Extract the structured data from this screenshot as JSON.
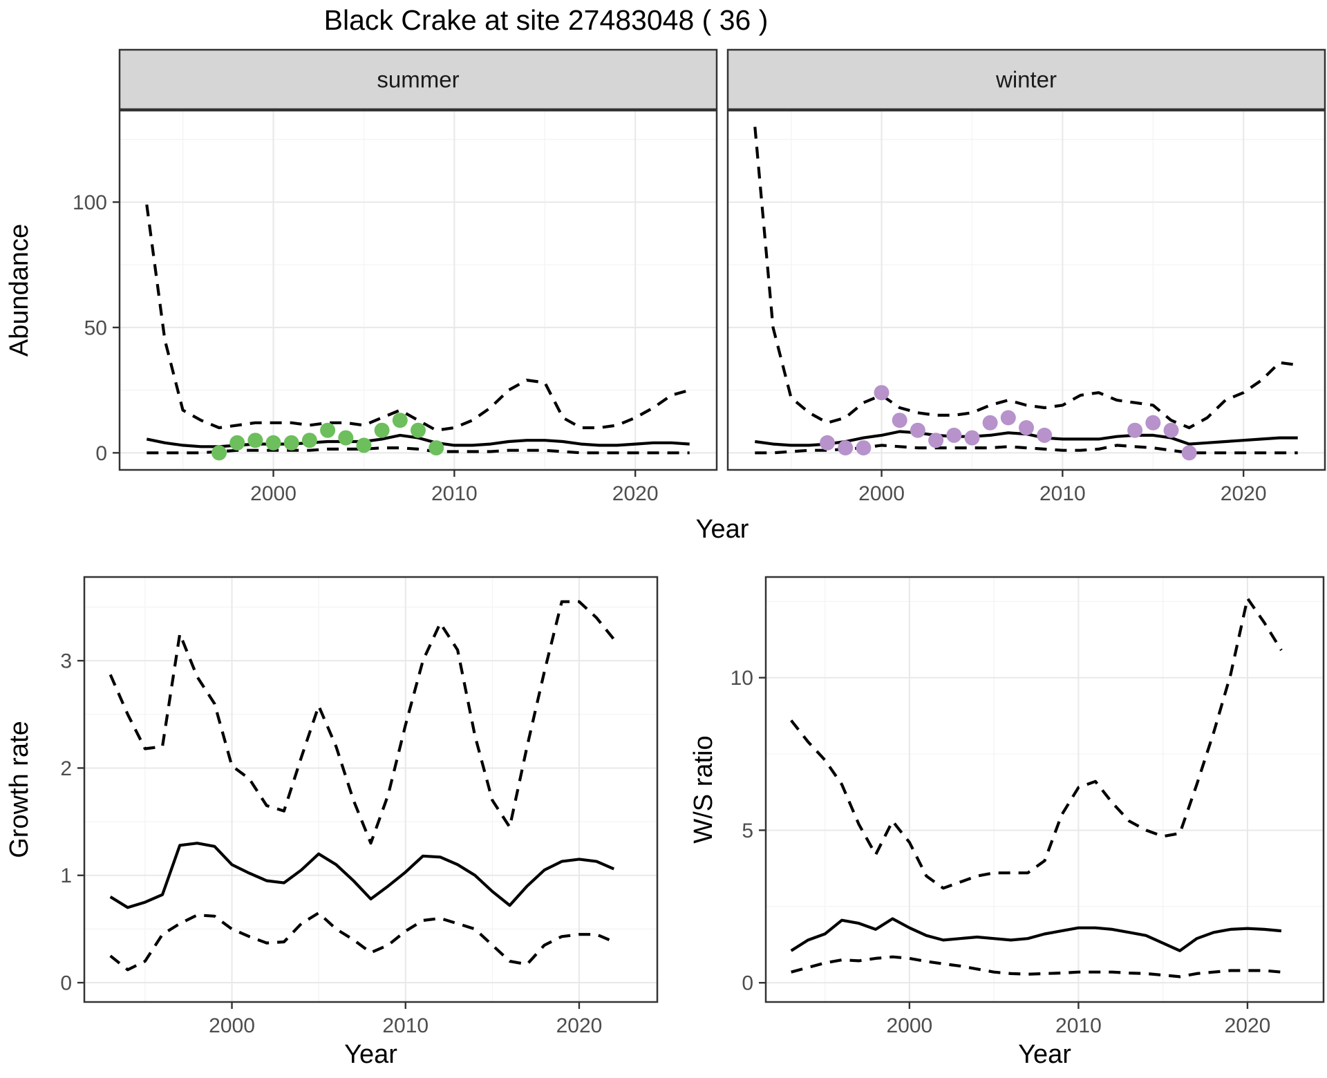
{
  "title": "Black Crake at site 27483048 ( 36 )",
  "colors": {
    "background": "#ffffff",
    "summer_point": "#6cbf5c",
    "winter_point": "#b792cb",
    "line": "#000000",
    "strip_bg": "#d6d6d6",
    "strip_text": "#1a1a1a",
    "panel_border": "#333333",
    "grid_major": "#e8e8e8",
    "grid_minor": "#f3f3f3",
    "tick_color": "#333333",
    "axis_text": "#4d4d4d",
    "axis_title": "#000000"
  },
  "shared_x_title": "Year",
  "chart_data": [
    {
      "id": "abundance-summer",
      "type": "line",
      "facet_label": "summer",
      "xlabel": "Year",
      "ylabel": "Abundance",
      "xlim": [
        1991.5,
        2024.5
      ],
      "ylim": [
        -6.8,
        136.5
      ],
      "xticks": [
        2000,
        2010,
        2020
      ],
      "yticks": [
        0,
        50,
        100
      ],
      "x_minor": [
        1995,
        2005,
        2015,
        2025
      ],
      "y_minor": [
        25,
        75,
        125
      ],
      "grid": true,
      "legend_position": "none",
      "years": [
        1993,
        1994,
        1995,
        1996,
        1997,
        1998,
        1999,
        2000,
        2001,
        2002,
        2003,
        2004,
        2005,
        2006,
        2007,
        2008,
        2009,
        2010,
        2011,
        2012,
        2013,
        2014,
        2015,
        2016,
        2017,
        2018,
        2019,
        2020,
        2021,
        2022,
        2023
      ],
      "series": [
        {
          "name": "fit",
          "style": "solid",
          "values": [
            5.5,
            4,
            3,
            2.5,
            2.5,
            3,
            3.5,
            3.5,
            3.5,
            4,
            4.5,
            4.5,
            4.5,
            5.5,
            7,
            6,
            4,
            3,
            3,
            3.5,
            4.5,
            5,
            5,
            4.5,
            3.5,
            3,
            3,
            3.5,
            4,
            4,
            3.5
          ]
        },
        {
          "name": "ci_upper",
          "style": "dashed",
          "values": [
            99,
            45,
            17,
            13,
            10,
            11,
            12,
            12,
            12,
            11,
            12,
            12,
            11,
            14,
            17,
            13,
            9,
            10,
            13,
            18,
            25,
            29,
            28,
            14,
            10,
            10,
            11,
            14,
            18,
            23,
            25
          ]
        },
        {
          "name": "ci_lower",
          "style": "dashed",
          "values": [
            0,
            0,
            0,
            0,
            0.5,
            1,
            1,
            1,
            1,
            1,
            1.5,
            1.5,
            1.5,
            2,
            2,
            1.5,
            0.5,
            0.5,
            0.5,
            0.5,
            1,
            1,
            1,
            0.5,
            0,
            0,
            0,
            0,
            0,
            0,
            0
          ]
        }
      ],
      "points": {
        "name": "observed-counts-summer",
        "color_key": "summer_point",
        "data": [
          [
            1997,
            0
          ],
          [
            1998,
            4
          ],
          [
            1999,
            5
          ],
          [
            2000,
            4
          ],
          [
            2001,
            4
          ],
          [
            2002,
            5
          ],
          [
            2003,
            9
          ],
          [
            2004,
            6
          ],
          [
            2005,
            3
          ],
          [
            2006,
            9
          ],
          [
            2007,
            13
          ],
          [
            2008,
            9
          ],
          [
            2009,
            2
          ]
        ]
      }
    },
    {
      "id": "abundance-winter",
      "type": "line",
      "facet_label": "winter",
      "xlabel": "Year",
      "ylabel": "Abundance",
      "xlim": [
        1991.5,
        2024.5
      ],
      "ylim": [
        -6.8,
        136.5
      ],
      "xticks": [
        2000,
        2010,
        2020
      ],
      "yticks": [
        0,
        50,
        100
      ],
      "x_minor": [
        1995,
        2005,
        2015,
        2025
      ],
      "y_minor": [
        25,
        75,
        125
      ],
      "grid": true,
      "legend_position": "none",
      "years": [
        1993,
        1994,
        1995,
        1996,
        1997,
        1998,
        1999,
        2000,
        2001,
        2002,
        2003,
        2004,
        2005,
        2006,
        2007,
        2008,
        2009,
        2010,
        2011,
        2012,
        2013,
        2014,
        2015,
        2016,
        2017,
        2018,
        2019,
        2020,
        2021,
        2022,
        2023
      ],
      "series": [
        {
          "name": "fit",
          "style": "solid",
          "values": [
            4.5,
            3.5,
            3,
            3,
            3.5,
            4.5,
            6,
            7,
            8.5,
            8,
            7,
            6.5,
            6.5,
            7,
            8,
            7.5,
            6,
            5.5,
            5.5,
            5.5,
            6.5,
            7,
            7,
            6,
            3.5,
            4,
            4.5,
            5,
            5.5,
            6,
            6
          ]
        },
        {
          "name": "ci_upper",
          "style": "dashed",
          "values": [
            130,
            50,
            22,
            16,
            12,
            14,
            20,
            23,
            18,
            16,
            15,
            15,
            16,
            19,
            21,
            19,
            18,
            19,
            23,
            24,
            21,
            20,
            19,
            13,
            10,
            14,
            21,
            24,
            29,
            36,
            35
          ]
        },
        {
          "name": "ci_lower",
          "style": "dashed",
          "values": [
            0,
            0,
            0.5,
            1,
            1,
            1.5,
            2,
            3,
            2.5,
            2,
            2,
            2,
            2,
            2,
            2.5,
            2,
            1.5,
            1,
            1,
            1.5,
            3,
            2.5,
            2,
            1,
            0,
            0,
            0,
            0,
            0,
            0,
            0
          ]
        }
      ],
      "points": {
        "name": "observed-counts-winter",
        "color_key": "winter_point",
        "data": [
          [
            1997,
            4
          ],
          [
            1998,
            2
          ],
          [
            1999,
            2
          ],
          [
            2000,
            24
          ],
          [
            2001,
            13
          ],
          [
            2002,
            9
          ],
          [
            2003,
            5
          ],
          [
            2004,
            7
          ],
          [
            2005,
            6
          ],
          [
            2006,
            12
          ],
          [
            2007,
            14
          ],
          [
            2008,
            10
          ],
          [
            2009,
            7
          ],
          [
            2014,
            9
          ],
          [
            2015,
            12
          ],
          [
            2016,
            9
          ],
          [
            2017,
            0
          ]
        ]
      }
    },
    {
      "id": "growth-rate",
      "type": "line",
      "facet_label": null,
      "xlabel": "Year",
      "ylabel": "Growth rate",
      "xlim": [
        1991.5,
        2024.5
      ],
      "ylim": [
        -0.18,
        3.78
      ],
      "xticks": [
        2000,
        2010,
        2020
      ],
      "yticks": [
        0,
        1,
        2,
        3
      ],
      "x_minor": [
        1995,
        2005,
        2015
      ],
      "y_minor": [
        0.5,
        1.5,
        2.5,
        3.5
      ],
      "grid": true,
      "legend_position": "none",
      "years": [
        1993,
        1994,
        1995,
        1996,
        1997,
        1998,
        1999,
        2000,
        2001,
        2002,
        2003,
        2004,
        2005,
        2006,
        2007,
        2008,
        2009,
        2010,
        2011,
        2012,
        2013,
        2014,
        2015,
        2016,
        2017,
        2018,
        2019,
        2020,
        2021,
        2022
      ],
      "series": [
        {
          "name": "fit",
          "style": "solid",
          "values": [
            0.8,
            0.7,
            0.75,
            0.82,
            1.28,
            1.3,
            1.27,
            1.1,
            1.02,
            0.95,
            0.93,
            1.05,
            1.2,
            1.1,
            0.95,
            0.78,
            0.9,
            1.03,
            1.18,
            1.17,
            1.1,
            1.0,
            0.85,
            0.72,
            0.9,
            1.05,
            1.13,
            1.15,
            1.13,
            1.06
          ]
        },
        {
          "name": "ci_upper",
          "style": "dashed",
          "values": [
            2.87,
            2.5,
            2.18,
            2.2,
            3.25,
            2.85,
            2.6,
            2.02,
            1.9,
            1.65,
            1.6,
            2.1,
            2.58,
            2.2,
            1.7,
            1.3,
            1.75,
            2.4,
            3.0,
            3.35,
            3.1,
            2.3,
            1.7,
            1.45,
            2.2,
            2.9,
            3.55,
            3.55,
            3.4,
            3.2
          ]
        },
        {
          "name": "ci_lower",
          "style": "dashed",
          "values": [
            0.25,
            0.12,
            0.2,
            0.45,
            0.55,
            0.63,
            0.62,
            0.5,
            0.43,
            0.37,
            0.38,
            0.55,
            0.65,
            0.5,
            0.4,
            0.28,
            0.35,
            0.48,
            0.58,
            0.6,
            0.55,
            0.5,
            0.35,
            0.2,
            0.17,
            0.35,
            0.43,
            0.45,
            0.45,
            0.38
          ]
        }
      ],
      "points": null
    },
    {
      "id": "ws-ratio",
      "type": "line",
      "facet_label": null,
      "xlabel": "Year",
      "ylabel": "W/S ratio",
      "xlim": [
        1991.5,
        2024.5
      ],
      "ylim": [
        -0.63,
        13.3
      ],
      "xticks": [
        2000,
        2010,
        2020
      ],
      "yticks": [
        0,
        5,
        10
      ],
      "x_minor": [
        1995,
        2005,
        2015
      ],
      "y_minor": [
        2.5,
        7.5,
        12.5
      ],
      "grid": true,
      "legend_position": "none",
      "years": [
        1993,
        1994,
        1995,
        1996,
        1997,
        1998,
        1999,
        2000,
        2001,
        2002,
        2003,
        2004,
        2005,
        2006,
        2007,
        2008,
        2009,
        2010,
        2011,
        2012,
        2013,
        2014,
        2015,
        2016,
        2017,
        2018,
        2019,
        2020,
        2021,
        2022
      ],
      "series": [
        {
          "name": "fit",
          "style": "solid",
          "values": [
            1.05,
            1.4,
            1.6,
            2.05,
            1.95,
            1.75,
            2.1,
            1.8,
            1.55,
            1.4,
            1.45,
            1.5,
            1.45,
            1.4,
            1.45,
            1.6,
            1.7,
            1.8,
            1.8,
            1.75,
            1.65,
            1.55,
            1.3,
            1.05,
            1.45,
            1.65,
            1.75,
            1.78,
            1.75,
            1.7
          ]
        },
        {
          "name": "ci_upper",
          "style": "dashed",
          "values": [
            8.6,
            7.9,
            7.3,
            6.5,
            5.2,
            4.2,
            5.3,
            4.6,
            3.5,
            3.1,
            3.3,
            3.5,
            3.6,
            3.6,
            3.6,
            4.0,
            5.5,
            6.4,
            6.6,
            5.9,
            5.3,
            5.0,
            4.8,
            4.9,
            6.5,
            8.2,
            10.1,
            12.6,
            11.8,
            10.9
          ]
        },
        {
          "name": "ci_lower",
          "style": "dashed",
          "values": [
            0.35,
            0.5,
            0.65,
            0.75,
            0.72,
            0.8,
            0.85,
            0.8,
            0.7,
            0.62,
            0.55,
            0.45,
            0.35,
            0.3,
            0.28,
            0.3,
            0.32,
            0.35,
            0.35,
            0.35,
            0.32,
            0.3,
            0.25,
            0.2,
            0.3,
            0.35,
            0.4,
            0.4,
            0.4,
            0.35
          ]
        }
      ],
      "points": null
    }
  ]
}
